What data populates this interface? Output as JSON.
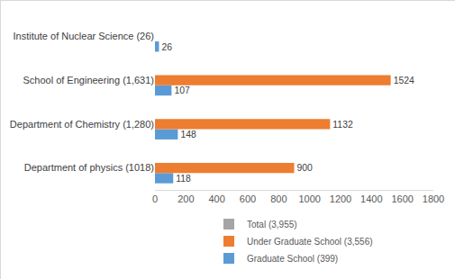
{
  "chart_data": {
    "type": "bar",
    "orientation": "horizontal",
    "categories": [
      "Department of physics (1018)",
      "Department of Chemistry (1,280)",
      "School of Engineering (1,631)",
      "Institute of Nuclear Science (26)"
    ],
    "series": [
      {
        "name": "Total (3,955)",
        "color": "#a5a5a5",
        "values": [
          null,
          null,
          null,
          null
        ]
      },
      {
        "name": "Under Graduate School (3,556)",
        "color": "#ed7d31",
        "values": [
          900,
          1132,
          1524,
          null
        ]
      },
      {
        "name": "Graduate School (399)",
        "color": "#5b9bd5",
        "values": [
          118,
          148,
          107,
          26
        ]
      }
    ],
    "xlim": [
      0,
      1800
    ],
    "xticks": [
      0,
      200,
      400,
      600,
      800,
      1000,
      1200,
      1400,
      1600,
      1800
    ],
    "grid": false,
    "data_labels": true,
    "legend": "bottom"
  }
}
